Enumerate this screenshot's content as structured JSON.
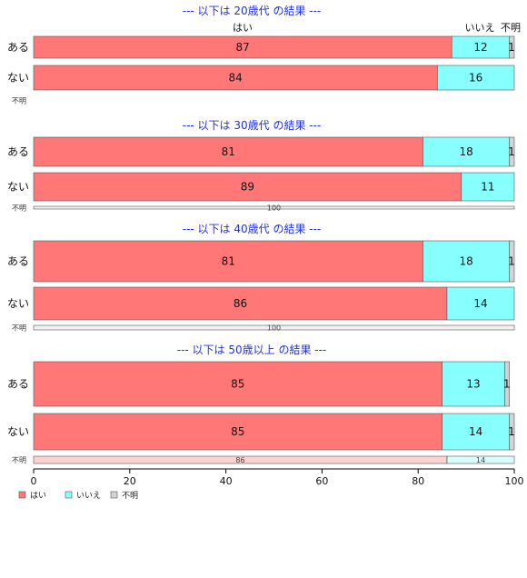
{
  "chart_data": {
    "type": "bar",
    "orientation": "horizontal-stacked-100",
    "legend_position": "bottom-left",
    "xlim": [
      0,
      100
    ],
    "x_ticks": [
      "0",
      "20",
      "40",
      "60",
      "80",
      "100"
    ],
    "column_headers": [
      "はい",
      "いいえ",
      "不明"
    ],
    "series_names": [
      "はい",
      "いいえ",
      "不明"
    ],
    "colors": [
      "#ff7777",
      "#88ffff",
      "#d3d3d3"
    ],
    "groups": [
      {
        "title": "--- 以下は 20歳代 の結果 ---",
        "rows": [
          {
            "label": "ある",
            "values": [
              87,
              12,
              1
            ]
          },
          {
            "label": "ない",
            "values": [
              84,
              16,
              0
            ]
          },
          {
            "label": "不明",
            "values": [
              0,
              0,
              0
            ]
          }
        ]
      },
      {
        "title": "--- 以下は 30歳代 の結果 ---",
        "rows": [
          {
            "label": "ある",
            "values": [
              81,
              18,
              1
            ]
          },
          {
            "label": "ない",
            "values": [
              89,
              11,
              0
            ]
          },
          {
            "label": "不明",
            "values": [
              0,
              0,
              100
            ]
          }
        ]
      },
      {
        "title": "--- 以下は 40歳代 の結果 ---",
        "rows": [
          {
            "label": "ある",
            "values": [
              81,
              18,
              1
            ]
          },
          {
            "label": "ない",
            "values": [
              86,
              14,
              0
            ]
          },
          {
            "label": "不明",
            "values": [
              0,
              0,
              100
            ]
          }
        ]
      },
      {
        "title": "--- 以下は 50歳以上 の結果 ---",
        "rows": [
          {
            "label": "ある",
            "values": [
              85,
              13,
              1
            ]
          },
          {
            "label": "ない",
            "values": [
              85,
              14,
              1
            ]
          },
          {
            "label": "不明",
            "values": [
              86,
              14,
              0
            ]
          }
        ]
      }
    ]
  }
}
